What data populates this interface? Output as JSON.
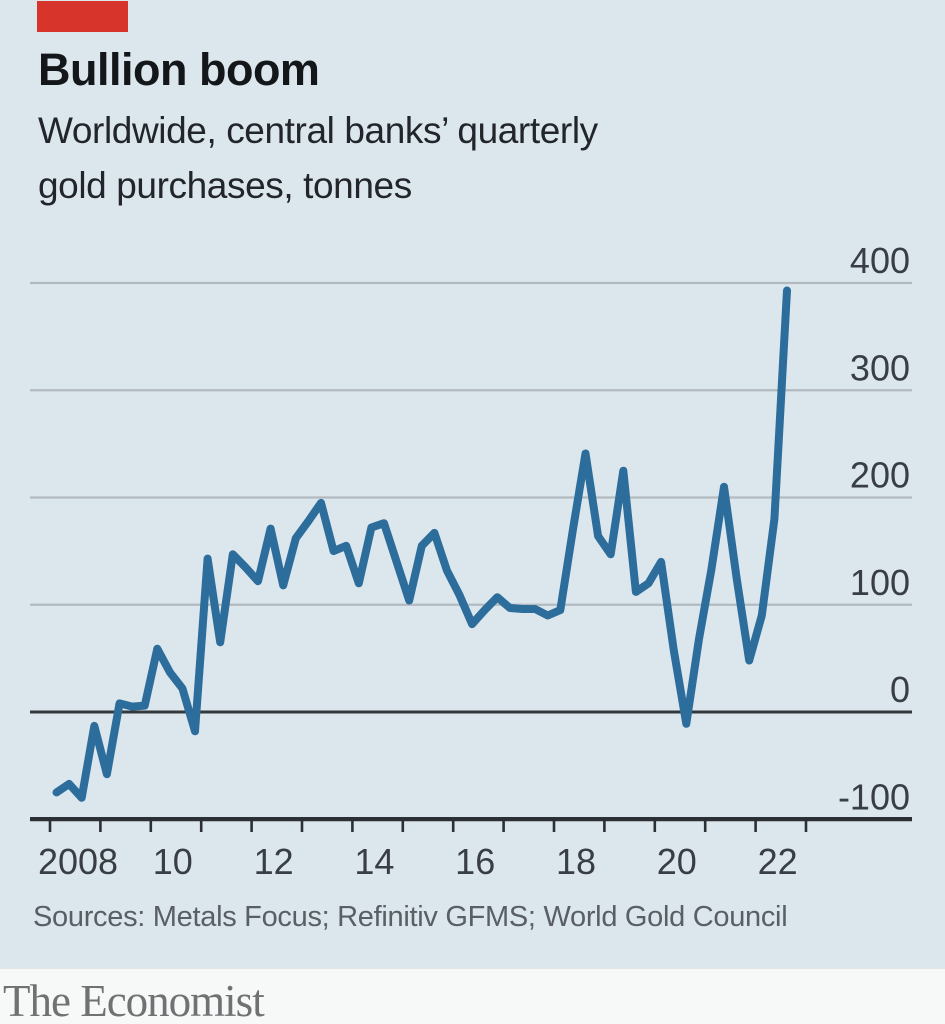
{
  "header": {
    "title": "Bullion boom",
    "subtitle_line1": "Worldwide, central banks’ quarterly",
    "subtitle_line2": "gold purchases, tonnes"
  },
  "source": "Sources: Metals Focus; Refinitiv GFMS; World Gold Council",
  "footer": {
    "brand": "The Economist"
  },
  "colors": {
    "panel_bg": "#dce7ed",
    "accent_red": "#d7342c",
    "line_blue": "#2d6d9c",
    "gridline_grey": "#b2bac0",
    "axis_dark": "#2b3034",
    "title_text": "#14171a",
    "muted_text": "#595f64",
    "brand_grey": "#6f7173"
  },
  "chart_data": {
    "type": "line",
    "title": "Bullion boom",
    "subtitle": "Worldwide, central banks’ quarterly gold purchases, tonnes",
    "unit": "tonnes",
    "frequency": "quarterly",
    "x_start": "2008 Q1",
    "x_end": "2022 Q3",
    "ylim": [
      -100,
      430
    ],
    "grid": "horizontal",
    "legend": "none",
    "y_ticks": [
      400,
      300,
      200,
      100,
      0,
      -100
    ],
    "x_tick_labels": [
      "2008",
      "",
      "10",
      "",
      "12",
      "",
      "14",
      "",
      "16",
      "",
      "18",
      "",
      "20",
      "",
      "22",
      ""
    ],
    "series": [
      {
        "name": "Central banks’ net gold purchases",
        "values": [
          -75,
          -67,
          -80,
          -13,
          -58,
          8,
          5,
          6,
          59,
          37,
          22,
          -18,
          143,
          65,
          147,
          135,
          122,
          171,
          118,
          162,
          178,
          195,
          150,
          155,
          120,
          172,
          176,
          140,
          104,
          155,
          167,
          132,
          109,
          82,
          95,
          107,
          97,
          96,
          96,
          90,
          95,
          170,
          241,
          164,
          147,
          225,
          112,
          120,
          140,
          58,
          -11,
          67,
          133,
          210,
          125,
          48,
          90,
          180,
          393
        ]
      }
    ]
  }
}
